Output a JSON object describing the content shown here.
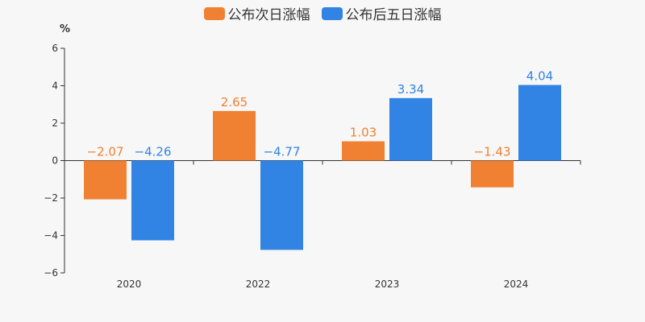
{
  "chart_data": {
    "type": "bar",
    "categories": [
      "2020",
      "2022",
      "2023",
      "2024"
    ],
    "series": [
      {
        "name": "公布次日涨幅",
        "values": [
          -2.07,
          2.65,
          1.03,
          -1.43
        ],
        "labels": [
          "−2.07",
          "2.65",
          "1.03",
          "−1.43"
        ],
        "color": "#f08133"
      },
      {
        "name": "公布后五日涨幅",
        "values": [
          -4.26,
          -4.77,
          3.34,
          4.04
        ],
        "labels": [
          "−4.26",
          "−4.77",
          "3.34",
          "4.04"
        ],
        "color": "#3184e4"
      }
    ],
    "ylabel": "%",
    "ylim": [
      -6,
      6
    ],
    "yticks": [
      6,
      4,
      2,
      0,
      -2,
      -4,
      -6
    ],
    "ytick_labels": [
      "6",
      "4",
      "2",
      "0",
      "−2",
      "−4",
      "−6"
    ],
    "legend_position": "top-center",
    "grid": false
  }
}
